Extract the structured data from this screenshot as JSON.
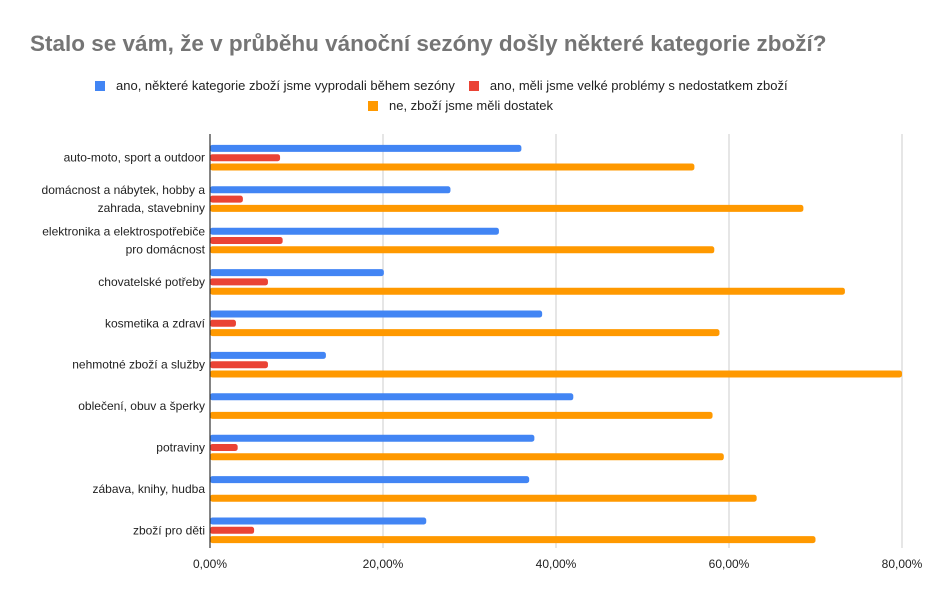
{
  "chart_data": {
    "type": "bar",
    "orientation": "horizontal",
    "title": "Stalo se vám, že v průběhu vánoční sezóny došly některé kategorie zboží?",
    "xlabel": "",
    "ylabel": "",
    "xlim": [
      0,
      80
    ],
    "x_ticks": [
      0,
      20,
      40,
      60,
      80
    ],
    "x_tick_labels": [
      "0,00%",
      "20,00%",
      "40,00%",
      "60,00%",
      "80,00%"
    ],
    "grid": true,
    "legend_position": "top",
    "categories": [
      [
        "auto-moto, sport a outdoor"
      ],
      [
        "domácnost a nábytek, hobby a",
        "zahrada, stavebniny"
      ],
      [
        "elektronika a elektrospotřebiče",
        "pro domácnost"
      ],
      [
        "chovatelské potřeby"
      ],
      [
        "kosmetika a zdraví"
      ],
      [
        "nehmotné zboží a služby"
      ],
      [
        "oblečení, obuv a šperky"
      ],
      [
        "potraviny"
      ],
      [
        "zábava, knihy, hudba"
      ],
      [
        "zboží pro děti"
      ]
    ],
    "series": [
      {
        "name": "ano, některé kategorie zboží jsme vyprodali během sezóny",
        "color": "#4285f4",
        "values": [
          36.0,
          27.8,
          33.4,
          20.1,
          38.4,
          13.4,
          42.0,
          37.5,
          36.9,
          25.0
        ]
      },
      {
        "name": "ano, měli jsme velké problémy s nedostatkem zboží",
        "color": "#ea4335",
        "values": [
          8.1,
          3.8,
          8.4,
          6.7,
          3.0,
          6.7,
          0,
          3.2,
          0,
          5.1
        ]
      },
      {
        "name": "ne, zboží jsme měli dostatek",
        "color": "#ff9900",
        "values": [
          56.0,
          68.6,
          58.3,
          73.4,
          58.9,
          80.0,
          58.1,
          59.4,
          63.2,
          70.0
        ]
      }
    ]
  }
}
